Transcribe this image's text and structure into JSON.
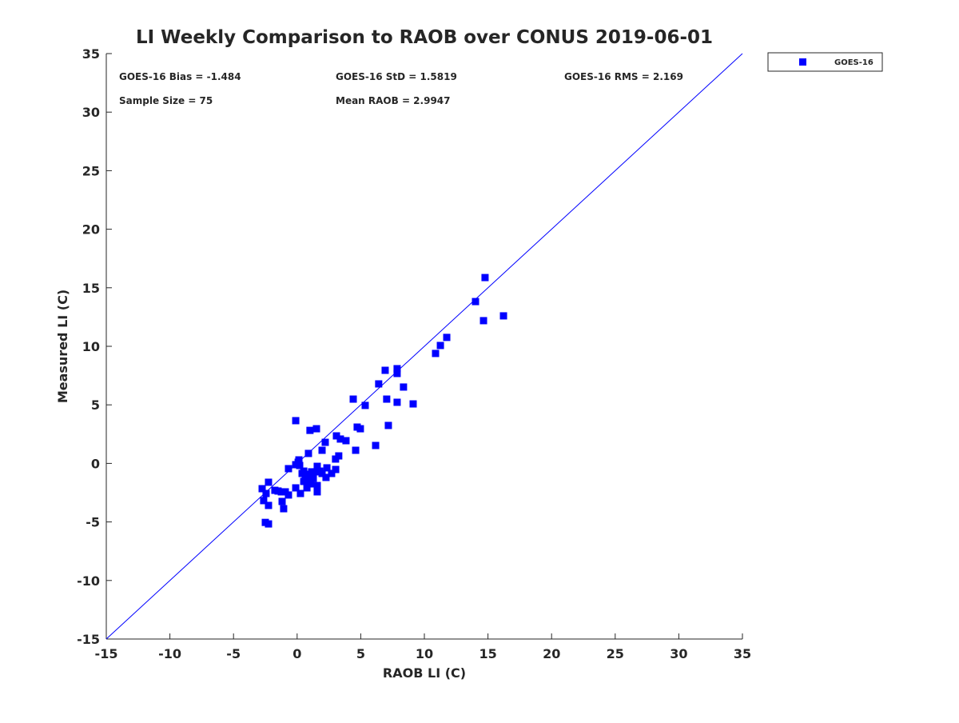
{
  "chart_data": {
    "type": "scatter",
    "title": "LI Weekly Comparison to RAOB over CONUS 2019-06-01",
    "xlabel": "RAOB LI (C)",
    "ylabel": "Measured LI (C)",
    "xlim": [
      -15,
      35
    ],
    "ylim": [
      -15,
      35
    ],
    "xticks": [
      -15,
      -10,
      -5,
      0,
      5,
      10,
      15,
      20,
      25,
      30,
      35
    ],
    "yticks": [
      -15,
      -10,
      -5,
      0,
      5,
      10,
      15,
      20,
      25,
      30,
      35
    ],
    "grid": false,
    "legend": {
      "placement": "top-right-outside",
      "entries": [
        "GOES-16"
      ]
    },
    "annotations": [
      "GOES-16 Bias = -1.484",
      "GOES-16 StD = 1.5819",
      "GOES-16 RMS = 2.169",
      "Sample Size = 75",
      "Mean RAOB = 2.9947"
    ],
    "reference_line": {
      "label": "1:1",
      "from": [
        -15,
        -15
      ],
      "to": [
        35,
        35
      ]
    },
    "series": [
      {
        "name": "GOES-16",
        "color": "#0000ff",
        "marker": "square",
        "points": [
          [
            14.77,
            15.87
          ],
          [
            14.02,
            13.82
          ],
          [
            14.65,
            12.19
          ],
          [
            16.22,
            12.6
          ],
          [
            11.76,
            10.76
          ],
          [
            11.26,
            10.07
          ],
          [
            10.88,
            9.39
          ],
          [
            6.92,
            7.95
          ],
          [
            7.86,
            8.09
          ],
          [
            7.86,
            7.68
          ],
          [
            6.41,
            6.79
          ],
          [
            8.36,
            6.52
          ],
          [
            4.41,
            5.49
          ],
          [
            7.04,
            5.49
          ],
          [
            7.86,
            5.22
          ],
          [
            9.12,
            5.08
          ],
          [
            5.35,
            4.95
          ],
          [
            7.17,
            3.24
          ],
          [
            -0.11,
            3.65
          ],
          [
            1.52,
            2.96
          ],
          [
            1.01,
            2.82
          ],
          [
            3.09,
            2.35
          ],
          [
            3.4,
            2.08
          ],
          [
            3.84,
            1.94
          ],
          [
            2.21,
            1.8
          ],
          [
            4.72,
            3.1
          ],
          [
            4.97,
            2.96
          ],
          [
            6.17,
            1.53
          ],
          [
            4.6,
            1.12
          ],
          [
            1.96,
            1.12
          ],
          [
            0.89,
            0.85
          ],
          [
            3.27,
            0.64
          ],
          [
            3.02,
            0.37
          ],
          [
            0.14,
            0.3
          ],
          [
            -0.11,
            -0.11
          ],
          [
            0.2,
            -0.18
          ],
          [
            -0.68,
            -0.45
          ],
          [
            1.58,
            -0.25
          ],
          [
            2.34,
            -0.38
          ],
          [
            3.03,
            -0.52
          ],
          [
            2.71,
            -0.86
          ],
          [
            2.27,
            -1.2
          ],
          [
            1.77,
            -0.66
          ],
          [
            1.46,
            -0.72
          ],
          [
            0.52,
            -0.66
          ],
          [
            0.64,
            -1.2
          ],
          [
            0.95,
            -1.27
          ],
          [
            1.27,
            -1.27
          ],
          [
            0.52,
            -1.54
          ],
          [
            1.08,
            -1.75
          ],
          [
            1.58,
            -1.89
          ],
          [
            1.58,
            -2.43
          ],
          [
            0.77,
            -2.09
          ],
          [
            0.26,
            -2.57
          ],
          [
            -0.11,
            -2.09
          ],
          [
            -2.25,
            -1.61
          ],
          [
            -2.75,
            -2.16
          ],
          [
            -2.44,
            -2.57
          ],
          [
            -1.75,
            -2.3
          ],
          [
            -1.5,
            -2.36
          ],
          [
            -1.24,
            -2.43
          ],
          [
            -0.93,
            -2.43
          ],
          [
            -0.68,
            -2.7
          ],
          [
            -2.63,
            -3.18
          ],
          [
            -2.25,
            -3.59
          ],
          [
            -1.18,
            -3.25
          ],
          [
            -1.06,
            -3.87
          ],
          [
            -2.5,
            -5.04
          ],
          [
            -2.25,
            -5.17
          ],
          [
            0.08,
            0.1
          ],
          [
            0.83,
            -0.93
          ],
          [
            1.14,
            -0.72
          ],
          [
            1.96,
            -0.86
          ],
          [
            1.01,
            -1.48
          ],
          [
            0.39,
            -0.86
          ]
        ]
      }
    ]
  }
}
